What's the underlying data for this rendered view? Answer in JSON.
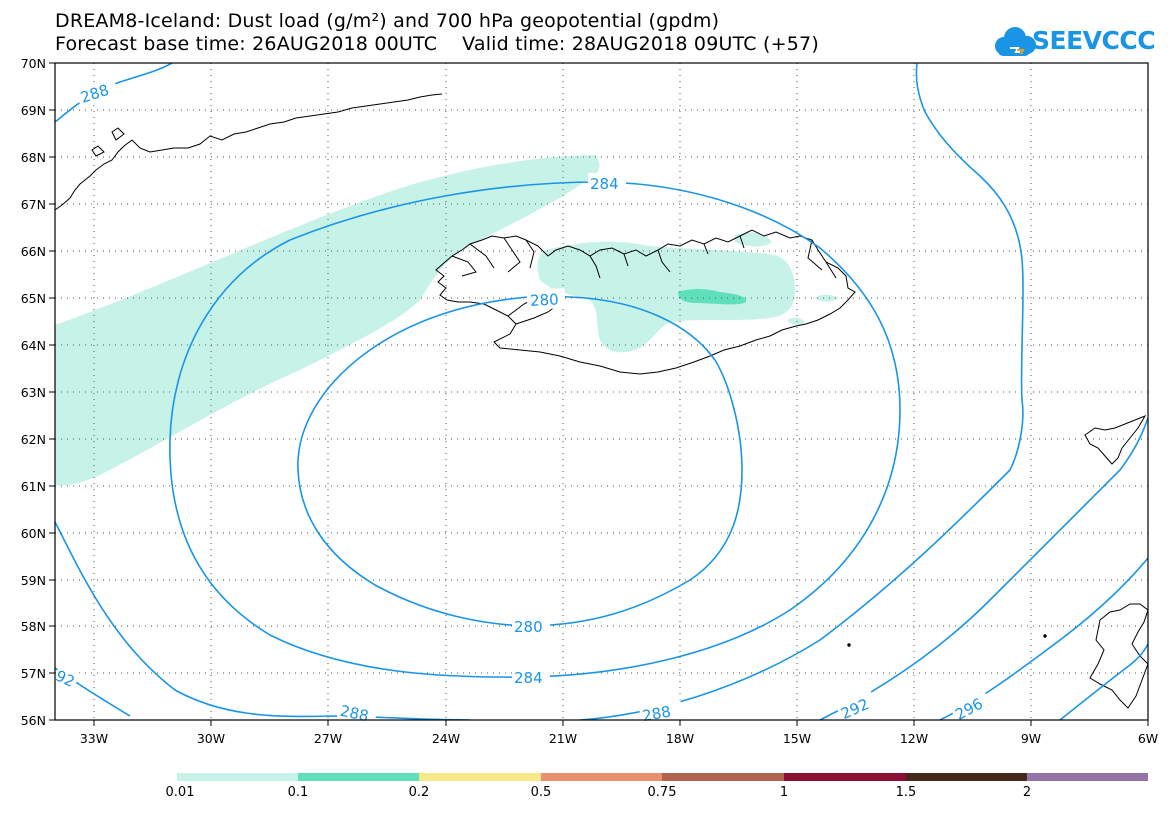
{
  "title": {
    "line1": "DREAM8-Iceland: Dust load (g/m²) and 700 hPa geopotential (gpdm)",
    "line2": "Forecast base time: 26AUG2018 00UTC    Valid time: 28AUG2018 09UTC (+57)"
  },
  "logo": {
    "text": "SEEVCCC",
    "icon": "cloud-icon",
    "color": "#1a95e6"
  },
  "map": {
    "lat_labels": [
      "70N",
      "69N",
      "68N",
      "67N",
      "66N",
      "65N",
      "64N",
      "63N",
      "62N",
      "61N",
      "60N",
      "59N",
      "58N",
      "57N",
      "56N"
    ],
    "lon_labels": [
      "33W",
      "30W",
      "27W",
      "24W",
      "21W",
      "18W",
      "15W",
      "12W",
      "9W",
      "6W"
    ],
    "contour_color": "#1a95e6",
    "contour_labels": [
      "288",
      "284",
      "280",
      "280",
      "284",
      "288",
      "288",
      "292",
      "296",
      "92"
    ]
  },
  "legend": {
    "colors": [
      "#c6f2e8",
      "#5fdfbc",
      "#f7e98a",
      "#e99070",
      "#b06350",
      "#8b0e35",
      "#46271a",
      "#9474a6"
    ],
    "labels": [
      "0.01",
      "0.1",
      "0.2",
      "0.5",
      "0.75",
      "1",
      "1.5",
      "2"
    ]
  }
}
